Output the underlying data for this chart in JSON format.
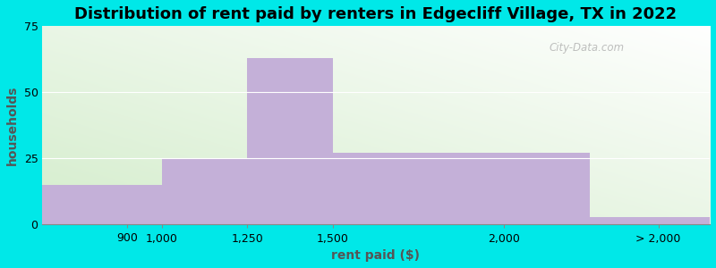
{
  "title": "Distribution of rent paid by renters in Edgecliff Village, TX in 2022",
  "xlabel": "rent paid ($)",
  "ylabel": "households",
  "bar_color": "#c4b0d8",
  "bar_edgecolor": "#c4b0d8",
  "background_outer": "#00e8e8",
  "bar_edges": [
    650,
    1000,
    1250,
    1500,
    2250,
    2600
  ],
  "bar_heights": [
    15,
    25,
    63,
    27,
    3
  ],
  "xlim": [
    650,
    2600
  ],
  "ylim": [
    0,
    75
  ],
  "yticks": [
    0,
    25,
    50,
    75
  ],
  "xtick_positions": [
    900,
    1000,
    1250,
    1500,
    2000,
    2450
  ],
  "xtick_labels": [
    "900",
    "1,000",
    "1,250",
    "1,500",
    "2,000",
    "> 2,000"
  ],
  "title_fontsize": 13,
  "axis_label_fontsize": 10,
  "tick_fontsize": 9,
  "watermark_text": "City-Data.com",
  "gradient_left": "#d4edcc",
  "gradient_right": "#f5fff5"
}
